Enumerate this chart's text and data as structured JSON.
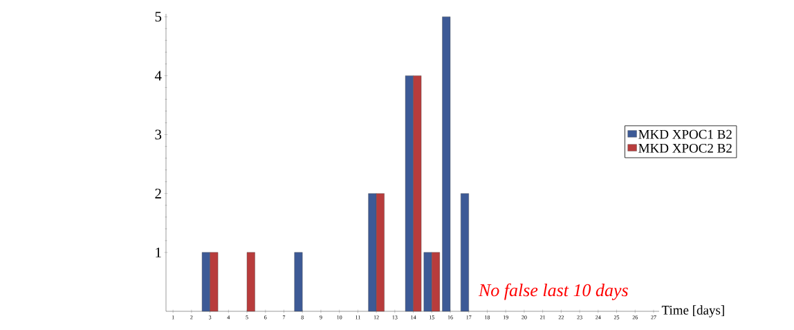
{
  "chart_data": {
    "type": "bar",
    "xlabel": "Time [days]",
    "categories": [
      "1",
      "2",
      "3",
      "4",
      "5",
      "6",
      "7",
      "8",
      "9",
      "10",
      "11",
      "12",
      "13",
      "14",
      "15",
      "16",
      "17",
      "18",
      "19",
      "20",
      "21",
      "22",
      "23",
      "24",
      "25",
      "26",
      "27"
    ],
    "series": [
      {
        "name": "MKD XPOC1 B2",
        "color": "#3d5a96",
        "values": [
          0,
          0,
          1,
          0,
          0,
          0,
          0,
          1,
          0,
          0,
          0,
          2,
          0,
          4,
          1,
          5,
          2,
          0,
          0,
          0,
          0,
          0,
          0,
          0,
          0,
          0,
          0
        ]
      },
      {
        "name": "MKD XPOC2 B2",
        "color": "#b83c3c",
        "values": [
          0,
          0,
          1,
          0,
          1,
          0,
          0,
          0,
          0,
          0,
          0,
          2,
          0,
          4,
          1,
          0,
          0,
          0,
          0,
          0,
          0,
          0,
          0,
          0,
          0,
          0,
          0
        ]
      }
    ],
    "ylim": [
      0,
      5.05
    ],
    "yticks": [
      1,
      2,
      3,
      4,
      5
    ],
    "legend": "right",
    "annotations": [
      "No false last 10 days"
    ]
  }
}
